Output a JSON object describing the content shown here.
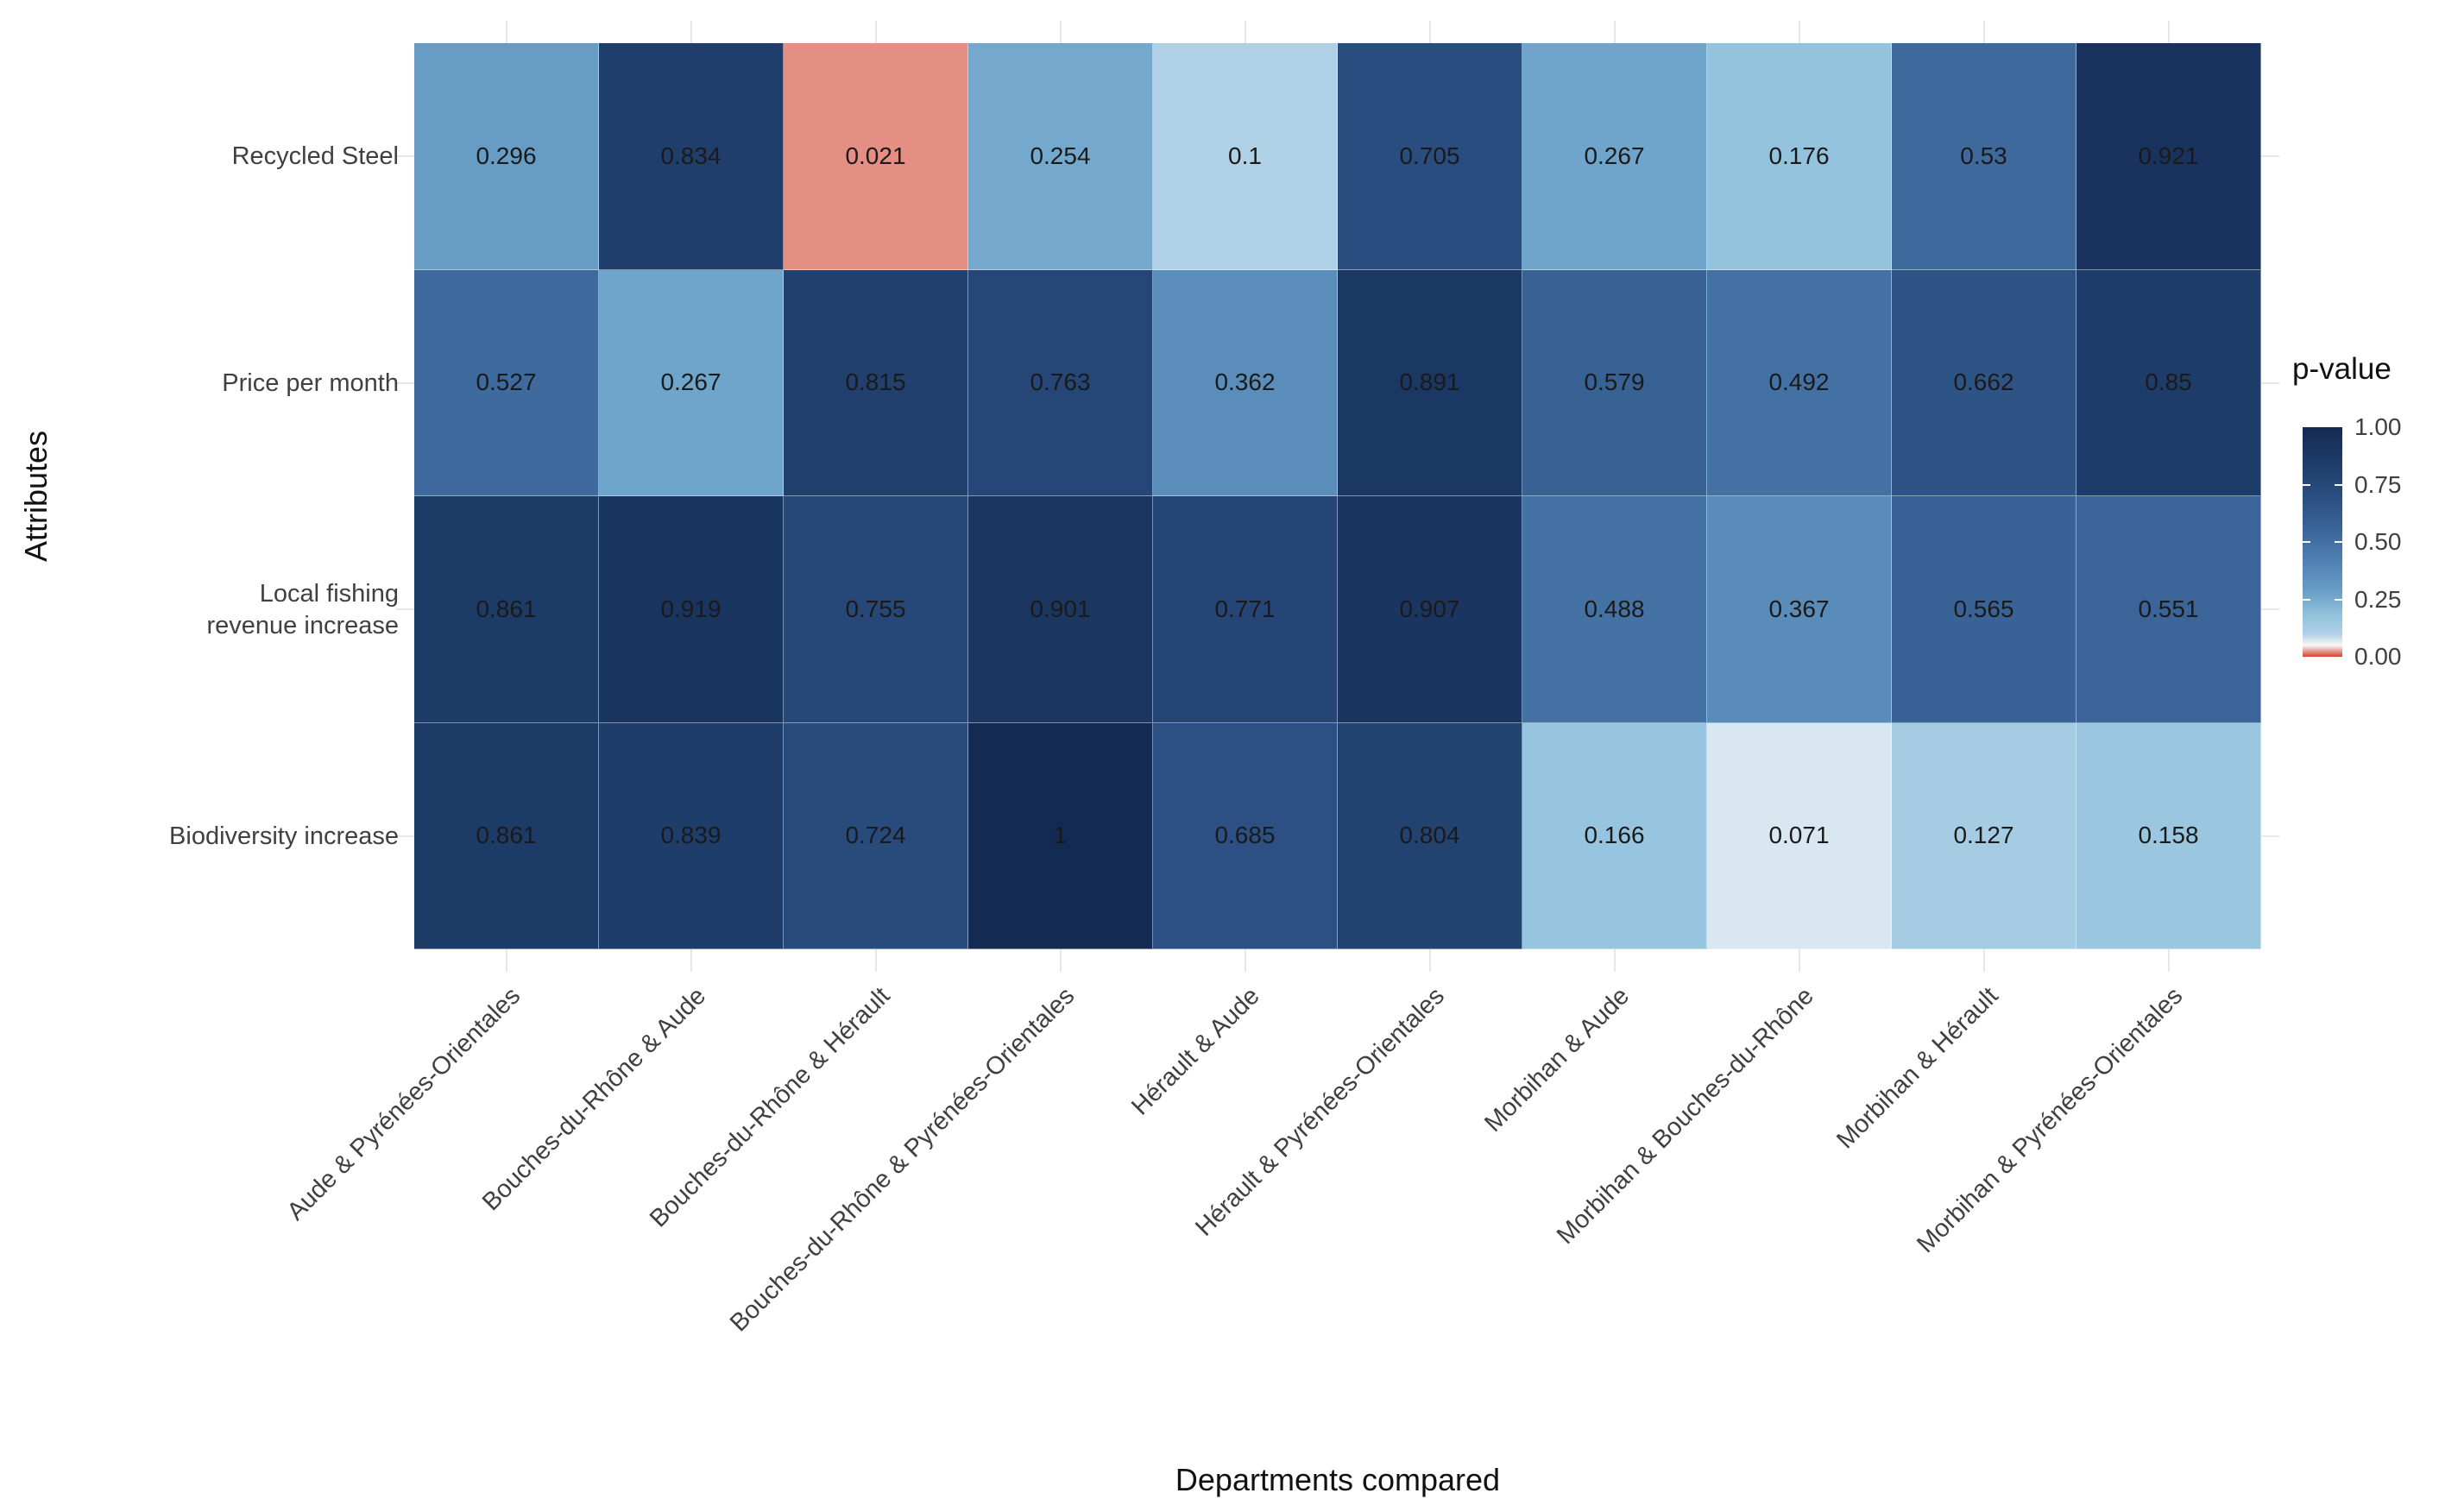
{
  "chart_data": {
    "type": "heatmap",
    "title": "",
    "xlabel": "Departments compared",
    "ylabel": "Attributes",
    "rows": [
      "Recycled Steel",
      "Price per month",
      "Local fishing revenue increase",
      "Biodiversity increase"
    ],
    "row_lines": [
      [
        "Recycled Steel"
      ],
      [
        "Price per month"
      ],
      [
        "Local fishing",
        "revenue increase"
      ],
      [
        "Biodiversity increase"
      ]
    ],
    "columns": [
      "Aude & Pyrénées-Orientales",
      "Bouches-du-Rhône & Aude",
      "Bouches-du-Rhône & Hérault",
      "Bouches-du-Rhône & Pyrénées-Orientales",
      "Hérault & Aude",
      "Hérault & Pyrénées-Orientales",
      "Morbihan & Aude",
      "Morbihan & Bouches-du-Rhône",
      "Morbihan & Hérault",
      "Morbihan & Pyrénées-Orientales"
    ],
    "values": [
      [
        0.296,
        0.834,
        0.021,
        0.254,
        0.1,
        0.705,
        0.267,
        0.176,
        0.53,
        0.921
      ],
      [
        0.527,
        0.267,
        0.815,
        0.763,
        0.362,
        0.891,
        0.579,
        0.492,
        0.662,
        0.85
      ],
      [
        0.861,
        0.919,
        0.755,
        0.901,
        0.771,
        0.907,
        0.488,
        0.367,
        0.565,
        0.551
      ],
      [
        0.861,
        0.839,
        0.724,
        1,
        0.685,
        0.804,
        0.166,
        0.071,
        0.127,
        0.158
      ]
    ],
    "cell_labels": [
      [
        "0.296",
        "0.834",
        "0.021",
        "0.254",
        "0.1",
        "0.705",
        "0.267",
        "0.176",
        "0.53",
        "0.921"
      ],
      [
        "0.527",
        "0.267",
        "0.815",
        "0.763",
        "0.362",
        "0.891",
        "0.579",
        "0.492",
        "0.662",
        "0.85"
      ],
      [
        "0.861",
        "0.919",
        "0.755",
        "0.901",
        "0.771",
        "0.907",
        "0.488",
        "0.367",
        "0.565",
        "0.551"
      ],
      [
        "0.861",
        "0.839",
        "0.724",
        "1",
        "0.685",
        "0.804",
        "0.166",
        "0.071",
        "0.127",
        "0.158"
      ]
    ],
    "value_range": [
      0,
      1
    ],
    "legend": {
      "title": "p-value",
      "position": "right",
      "ticks": [
        {
          "label": "1.00",
          "value": 1
        },
        {
          "label": "0.75",
          "value": 0.75
        },
        {
          "label": "0.50",
          "value": 0.5
        },
        {
          "label": "0.25",
          "value": 0.25
        },
        {
          "label": "0.00",
          "value": 0
        }
      ]
    },
    "scale": {
      "stops": [
        {
          "v": 0.0,
          "c": "#D64230"
        },
        {
          "v": 0.05,
          "c": "#F7F7F7"
        },
        {
          "v": 0.1,
          "c": "#B0D0E6"
        },
        {
          "v": 0.18,
          "c": "#92C3DD"
        },
        {
          "v": 0.28,
          "c": "#6AA0C7"
        },
        {
          "v": 0.4,
          "c": "#5284B4"
        },
        {
          "v": 0.55,
          "c": "#3B6599"
        },
        {
          "v": 0.7,
          "c": "#2A4E80"
        },
        {
          "v": 0.85,
          "c": "#1E3C69"
        },
        {
          "v": 1.0,
          "c": "#132A52"
        }
      ]
    },
    "grid": true
  },
  "colors": {
    "background": "#FFFFFF",
    "cell_text": "#1A1A1A",
    "axis_text": "#404040",
    "axis_title": "#111111",
    "gridline": "#E7E7E7",
    "significant_red": "#D64230",
    "dark_navy": "#132A52"
  }
}
